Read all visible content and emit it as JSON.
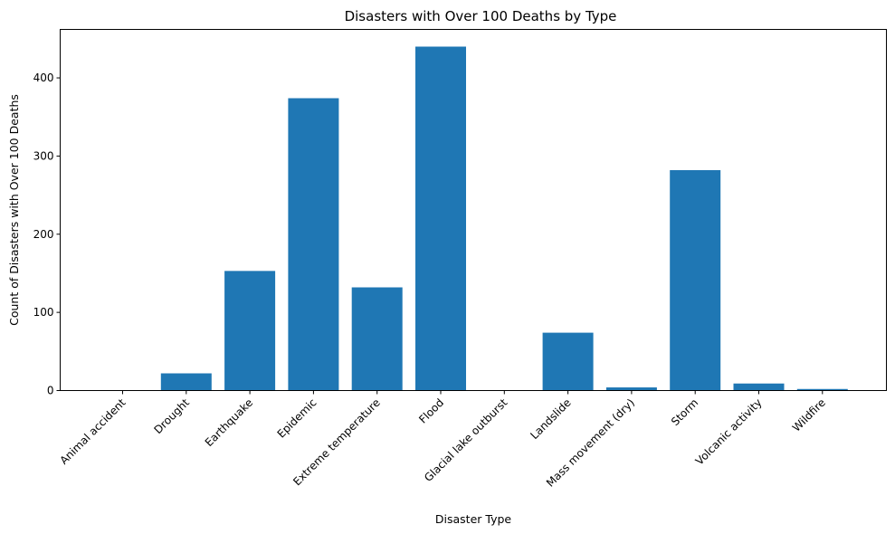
{
  "chart_data": {
    "type": "bar",
    "title": "Disasters with Over 100 Deaths by Type",
    "xlabel": "Disaster Type",
    "ylabel": "Count of Disasters with Over 100 Deaths",
    "categories": [
      "Animal accident",
      "Drought",
      "Earthquake",
      "Epidemic",
      "Extreme temperature",
      "Flood",
      "Glacial lake outburst",
      "Landslide",
      "Mass movement (dry)",
      "Storm",
      "Volcanic activity",
      "Wildfire"
    ],
    "values": [
      0,
      22,
      153,
      374,
      132,
      440,
      0,
      74,
      4,
      282,
      9,
      2
    ],
    "ylim": [
      0,
      462
    ],
    "yticks": [
      0,
      100,
      200,
      300,
      400
    ],
    "grid": false,
    "bar_color": "#1f77b4"
  }
}
